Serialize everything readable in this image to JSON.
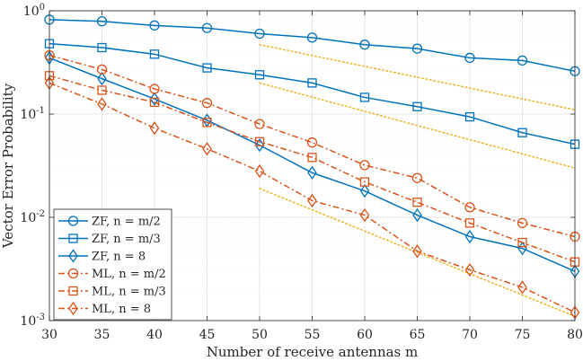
{
  "chart_data": {
    "type": "line",
    "x": [
      30,
      35,
      40,
      45,
      50,
      55,
      60,
      65,
      70,
      75,
      80
    ],
    "xlim": [
      30,
      80
    ],
    "ylim": [
      0.001,
      1
    ],
    "yscale": "log",
    "xticks": [
      "30",
      "35",
      "40",
      "45",
      "50",
      "55",
      "60",
      "65",
      "70",
      "75",
      "80"
    ],
    "yticks": [
      {
        "value": 1,
        "base": "10",
        "exp": "0"
      },
      {
        "value": 0.1,
        "base": "10",
        "exp": "-1"
      },
      {
        "value": 0.01,
        "base": "10",
        "exp": "-2"
      },
      {
        "value": 0.001,
        "base": "10",
        "exp": "-3"
      }
    ],
    "xlabel": "Number of receive antennas m",
    "ylabel": "Vector Error Probability",
    "grid": true,
    "legend_position": "bottom-left",
    "series": [
      {
        "name": "ZF, n = m/2",
        "color": "#0072BD",
        "marker": "circle",
        "line": "solid",
        "values": [
          0.82,
          0.79,
          0.72,
          0.68,
          0.6,
          0.55,
          0.47,
          0.43,
          0.35,
          0.33,
          0.26
        ]
      },
      {
        "name": "ZF, n = m/3",
        "color": "#0072BD",
        "marker": "square",
        "line": "solid",
        "values": [
          0.48,
          0.44,
          0.38,
          0.28,
          0.24,
          0.2,
          0.145,
          0.118,
          0.094,
          0.066,
          0.051
        ]
      },
      {
        "name": "ZF, n = 8",
        "color": "#0072BD",
        "marker": "diamond",
        "line": "solid",
        "values": [
          0.35,
          0.22,
          0.14,
          0.087,
          0.05,
          0.027,
          0.018,
          0.0105,
          0.0065,
          0.005,
          0.003
        ]
      },
      {
        "name": "ML, n = m/2",
        "color": "#D95319",
        "marker": "circle",
        "line": "dashdot",
        "values": [
          0.37,
          0.27,
          0.175,
          0.128,
          0.08,
          0.053,
          0.032,
          0.024,
          0.0125,
          0.0088,
          0.0065
        ]
      },
      {
        "name": "ML, n = m/3",
        "color": "#D95319",
        "marker": "square",
        "line": "dashdot",
        "values": [
          0.235,
          0.17,
          0.13,
          0.083,
          0.054,
          0.038,
          0.022,
          0.014,
          0.0088,
          0.0057,
          0.0037
        ]
      },
      {
        "name": "ML, n = 8",
        "color": "#D95319",
        "marker": "diamond",
        "line": "dashdot",
        "values": [
          0.2,
          0.125,
          0.073,
          0.046,
          0.028,
          0.0145,
          0.0105,
          0.0047,
          0.0031,
          0.0021,
          0.0012
        ]
      }
    ],
    "reference_lines": [
      {
        "color": "#EDB120",
        "style": "dotted",
        "x": [
          50,
          80
        ],
        "y": [
          0.47,
          0.11
        ]
      },
      {
        "color": "#EDB120",
        "style": "dotted",
        "x": [
          50,
          80
        ],
        "y": [
          0.2,
          0.03
        ]
      },
      {
        "color": "#EDB120",
        "style": "dotted",
        "x": [
          50,
          80
        ],
        "y": [
          0.019,
          0.0011
        ]
      }
    ]
  }
}
